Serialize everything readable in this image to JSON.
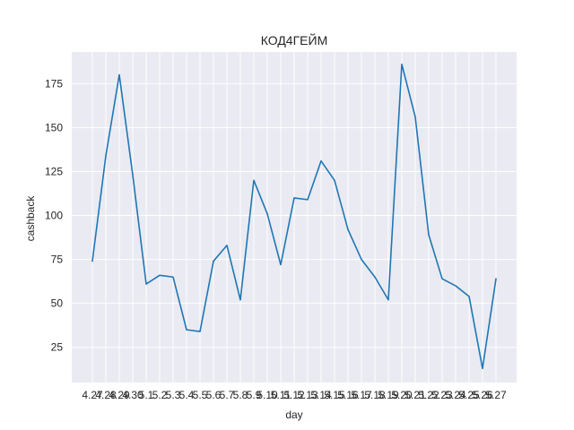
{
  "chart_data": {
    "type": "line",
    "title": "КОД4ГЕЙМ",
    "xlabel": "day",
    "ylabel": "cashback",
    "categories": [
      "4.27",
      "4.28",
      "4.29",
      "4.30",
      "5.1",
      "5.2",
      "5.3",
      "5.4",
      "5.5",
      "5.6",
      "5.7",
      "5.8",
      "5.9",
      "5.10",
      "5.11",
      "5.12",
      "5.13",
      "5.14",
      "5.15",
      "5.16",
      "5.17",
      "5.18",
      "5.19",
      "5.20",
      "5.21",
      "5.22",
      "5.23",
      "5.24",
      "5.25",
      "5.26",
      "5.27"
    ],
    "series": [
      {
        "name": "",
        "values": [
          74,
          134,
          180,
          123,
          61,
          66,
          65,
          35,
          34,
          74,
          83,
          52,
          120,
          101,
          72,
          110,
          109,
          131,
          120,
          92,
          75,
          65,
          52,
          186,
          156,
          89,
          64,
          60,
          54,
          13,
          64
        ]
      }
    ],
    "ylim": [
      5,
      193
    ],
    "yticks": [
      25,
      50,
      75,
      100,
      125,
      150,
      175
    ],
    "grid": true,
    "legend": "none",
    "colors": {
      "background": "#eaeaf2",
      "grid": "#ffffff",
      "line": "#1f77b4",
      "text": "#262626"
    }
  }
}
